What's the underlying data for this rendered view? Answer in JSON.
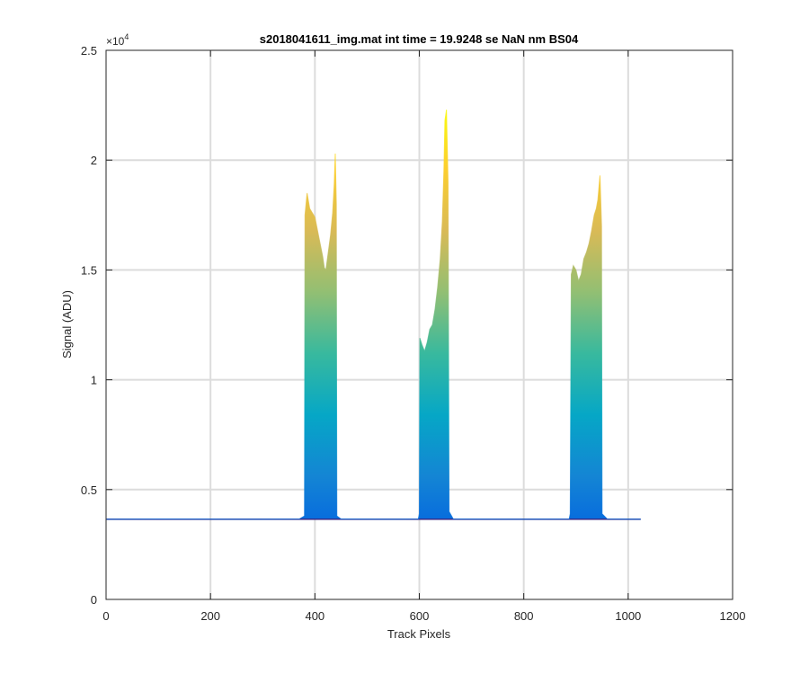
{
  "chart_data": {
    "type": "area",
    "title": "s2018041611_img.mat int time = 19.9248 se  NaN nm BS04",
    "xlabel": "Track Pixels",
    "ylabel": "Signal (ADU)",
    "xlim": [
      0,
      1200
    ],
    "ylim": [
      0,
      25000
    ],
    "xticks": [
      0,
      200,
      400,
      600,
      800,
      1000,
      1200
    ],
    "xtick_labels": [
      "0",
      "200",
      "400",
      "600",
      "800",
      "1000",
      "1200"
    ],
    "yticks": [
      0,
      5000,
      10000,
      15000,
      20000,
      25000
    ],
    "ytick_labels": [
      "0",
      "0.5",
      "1",
      "1.5",
      "2",
      "2.5"
    ],
    "y_exponent_label": "×10",
    "y_exponent_power": "4",
    "grid": true,
    "colormap": [
      "#352a87",
      "#0363e1",
      "#1485d4",
      "#06a7c6",
      "#38b99e",
      "#92bf73",
      "#d9ba56",
      "#fcce2e",
      "#f9fb0e"
    ],
    "baseline": 3650,
    "x_extent": [
      1,
      1024
    ],
    "series": [
      {
        "values": [
          [
            1,
            3650
          ],
          [
            100,
            3660
          ],
          [
            200,
            3655
          ],
          [
            300,
            3650
          ],
          [
            370,
            3660
          ],
          [
            380,
            3800
          ],
          [
            381,
            17500
          ],
          [
            385,
            18500
          ],
          [
            390,
            17800
          ],
          [
            395,
            17600
          ],
          [
            400,
            17400
          ],
          [
            405,
            16800
          ],
          [
            410,
            16200
          ],
          [
            415,
            15600
          ],
          [
            418,
            15100
          ],
          [
            421,
            15000
          ],
          [
            425,
            15700
          ],
          [
            430,
            16600
          ],
          [
            434,
            17600
          ],
          [
            437,
            18900
          ],
          [
            439,
            20300
          ],
          [
            441,
            18000
          ],
          [
            442,
            3800
          ],
          [
            450,
            3660
          ],
          [
            550,
            3650
          ],
          [
            598,
            3660
          ],
          [
            600,
            3900
          ],
          [
            601,
            11900
          ],
          [
            605,
            11600
          ],
          [
            610,
            11300
          ],
          [
            615,
            11700
          ],
          [
            620,
            12300
          ],
          [
            625,
            12500
          ],
          [
            630,
            13200
          ],
          [
            635,
            14200
          ],
          [
            640,
            15500
          ],
          [
            644,
            17200
          ],
          [
            647,
            19500
          ],
          [
            649,
            21800
          ],
          [
            652,
            22300
          ],
          [
            655,
            19000
          ],
          [
            657,
            4000
          ],
          [
            665,
            3660
          ],
          [
            800,
            3650
          ],
          [
            887,
            3660
          ],
          [
            889,
            3900
          ],
          [
            891,
            14800
          ],
          [
            895,
            15200
          ],
          [
            900,
            15000
          ],
          [
            905,
            14500
          ],
          [
            910,
            14800
          ],
          [
            915,
            15500
          ],
          [
            920,
            15800
          ],
          [
            925,
            16200
          ],
          [
            930,
            16800
          ],
          [
            935,
            17500
          ],
          [
            939,
            17800
          ],
          [
            942,
            18200
          ],
          [
            946,
            19300
          ],
          [
            949,
            17000
          ],
          [
            950,
            3900
          ],
          [
            960,
            3660
          ],
          [
            1024,
            3650
          ]
        ]
      }
    ]
  }
}
